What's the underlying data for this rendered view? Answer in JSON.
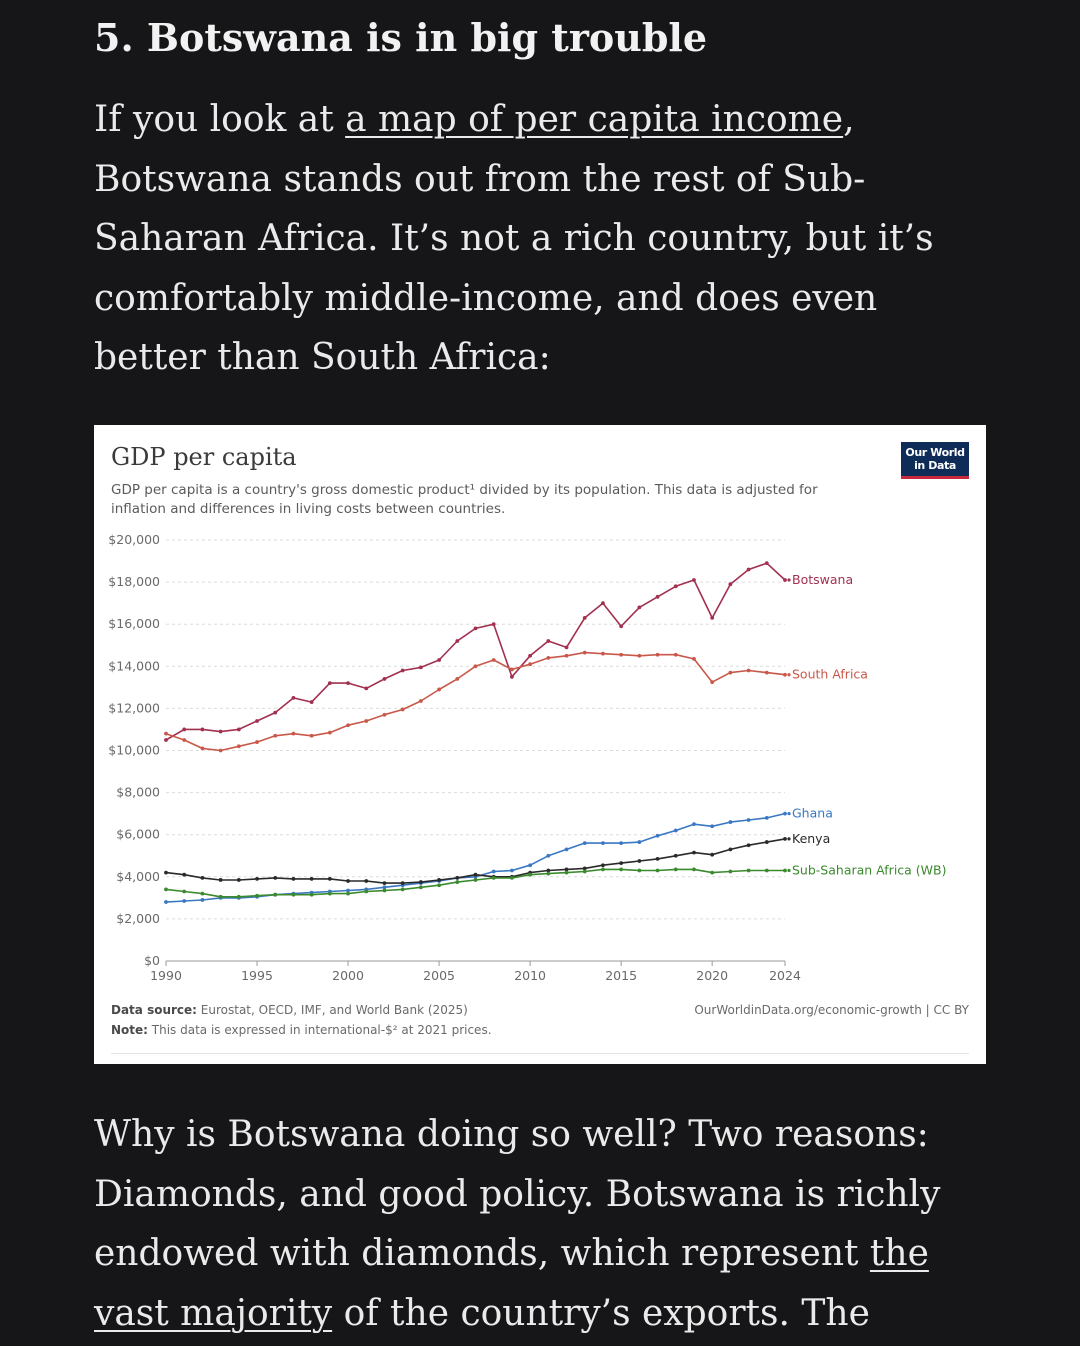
{
  "article": {
    "heading": "5. Botswana is in big trouble",
    "para1": {
      "before_link": "If you look at ",
      "link_text": "a map of per capita income",
      "after_link": ", Botswana stands out from the rest of Sub-Saharan Africa. It’s not a rich country, but it’s comfortably middle-income, and does even better than South Africa:"
    },
    "para2": {
      "before_link": "Why is Botswana doing so well? Two reasons: Diamonds, and good policy. Botswana is richly endowed with diamonds, which represent ",
      "link_text": "the vast majority",
      "after_link": " of the country’s exports. The"
    }
  },
  "figure": {
    "logo_line1": "Our World",
    "logo_line2": "in Data",
    "source_label": "Data source:",
    "source_text": " Eurostat, OECD, IMF, and World Bank (2025)",
    "note_label": "Note:",
    "note_text": " This data is expressed in international-$² at 2021 prices.",
    "attribution": "OurWorldinData.org/economic-growth | CC BY",
    "colors": {
      "botswana": "#a3304f",
      "south_africa": "#c9584a",
      "ghana": "#3a78c4",
      "kenya": "#2a2a2a",
      "ssa": "#3c8a2e"
    }
  },
  "chart_data": {
    "type": "line",
    "title": "GDP per capita",
    "subtitle": "GDP per capita is a country's gross domestic product¹ divided by its population. This data is adjusted for inflation and differences in living costs between countries.",
    "xlabel": "",
    "ylabel": "",
    "xlim": [
      1990,
      2024
    ],
    "ylim": [
      0,
      20000
    ],
    "x_ticks": [
      1990,
      1995,
      2000,
      2005,
      2010,
      2015,
      2020,
      2024
    ],
    "y_ticks": [
      0,
      2000,
      4000,
      6000,
      8000,
      10000,
      12000,
      14000,
      16000,
      18000,
      20000
    ],
    "y_tick_labels": [
      "$0",
      "$2,000",
      "$4,000",
      "$6,000",
      "$8,000",
      "$10,000",
      "$12,000",
      "$14,000",
      "$16,000",
      "$18,000",
      "$20,000"
    ],
    "x": [
      1990,
      1991,
      1992,
      1993,
      1994,
      1995,
      1996,
      1997,
      1998,
      1999,
      2000,
      2001,
      2002,
      2003,
      2004,
      2005,
      2006,
      2007,
      2008,
      2009,
      2010,
      2011,
      2012,
      2013,
      2014,
      2015,
      2016,
      2017,
      2018,
      2019,
      2020,
      2021,
      2022,
      2023,
      2024
    ],
    "series": [
      {
        "name": "Botswana",
        "color_key": "botswana",
        "values": [
          10500,
          11000,
          11000,
          10900,
          11000,
          11400,
          11800,
          12500,
          12300,
          13200,
          13200,
          12950,
          13400,
          13800,
          13950,
          14300,
          15200,
          15800,
          16000,
          13500,
          14500,
          15200,
          14900,
          16300,
          17000,
          15900,
          16800,
          17300,
          17800,
          18100,
          16300,
          17900,
          18600,
          18900,
          18100
        ]
      },
      {
        "name": "South Africa",
        "color_key": "south_africa",
        "values": [
          10800,
          10500,
          10100,
          10000,
          10200,
          10400,
          10700,
          10800,
          10700,
          10850,
          11200,
          11400,
          11700,
          11950,
          12350,
          12900,
          13400,
          14000,
          14300,
          13850,
          14100,
          14400,
          14500,
          14650,
          14600,
          14550,
          14500,
          14550,
          14550,
          14350,
          13250,
          13700,
          13800,
          13700,
          13600
        ]
      },
      {
        "name": "Ghana",
        "color_key": "ghana",
        "values": [
          2800,
          2850,
          2900,
          3000,
          3000,
          3050,
          3150,
          3200,
          3250,
          3300,
          3350,
          3400,
          3500,
          3600,
          3700,
          3800,
          3950,
          4000,
          4250,
          4300,
          4550,
          5000,
          5300,
          5600,
          5600,
          5600,
          5650,
          5950,
          6200,
          6500,
          6400,
          6600,
          6700,
          6800,
          7000
        ]
      },
      {
        "name": "Kenya",
        "color_key": "kenya",
        "values": [
          4200,
          4100,
          3950,
          3850,
          3850,
          3900,
          3950,
          3900,
          3900,
          3900,
          3800,
          3800,
          3700,
          3700,
          3750,
          3850,
          3950,
          4100,
          4000,
          4000,
          4200,
          4300,
          4350,
          4400,
          4550,
          4650,
          4750,
          4850,
          5000,
          5150,
          5050,
          5300,
          5500,
          5650,
          5800
        ]
      },
      {
        "name": "Sub-Saharan Africa (WB)",
        "color_key": "ssa",
        "values": [
          3400,
          3300,
          3200,
          3050,
          3050,
          3100,
          3150,
          3150,
          3150,
          3200,
          3200,
          3300,
          3350,
          3400,
          3500,
          3600,
          3750,
          3850,
          3950,
          3950,
          4100,
          4150,
          4200,
          4250,
          4350,
          4350,
          4300,
          4300,
          4350,
          4350,
          4200,
          4250,
          4300,
          4300,
          4300
        ]
      }
    ]
  }
}
